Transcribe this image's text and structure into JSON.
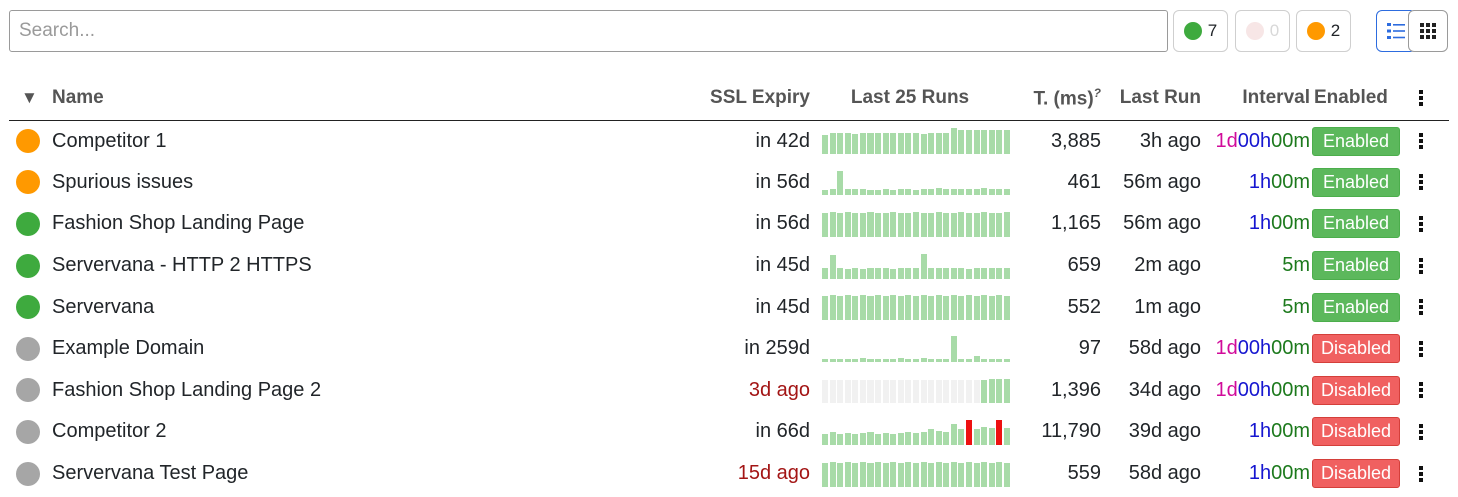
{
  "search": {
    "placeholder": "Search..."
  },
  "filters": [
    {
      "name": "filter-up",
      "count": "7",
      "color": "#3eaa3e",
      "muted": false
    },
    {
      "name": "filter-down",
      "count": "0",
      "color": "#f7e6e6",
      "muted": true
    },
    {
      "name": "filter-warning",
      "count": "2",
      "color": "#ff9900",
      "muted": false
    }
  ],
  "view_buttons": [
    {
      "name": "list-view-icon",
      "active": true
    },
    {
      "name": "grid-view-icon",
      "active": false
    }
  ],
  "columns": {
    "sort_icon": "▼",
    "name": "Name",
    "ssl": "SSL Expiry",
    "runs": "Last 25 Runs",
    "time": "T. (ms)",
    "time_help": "?",
    "last_run": "Last Run",
    "interval": "Interval",
    "enabled": "Enabled"
  },
  "colors": {
    "status_warning": "#ff9900",
    "status_up": "#3eaa3e",
    "status_disabled": "#a6a6a6",
    "run_ok": "#a8dba8",
    "run_fail": "#ee1111",
    "run_none": "#f1f1f1",
    "enabled": "#5cb85c",
    "disabled": "#f06060"
  },
  "rows": [
    {
      "name": "Competitor 1",
      "status": "warning",
      "ssl": "in 42d",
      "ssl_expired": false,
      "time": "3,885",
      "last_run": "3h ago",
      "interval": [
        {
          "t": "1",
          "c": "pink"
        },
        {
          "t": "d",
          "c": "pink"
        },
        {
          "t": "00",
          "c": "blue"
        },
        {
          "t": "h",
          "c": "blue"
        },
        {
          "t": "00",
          "c": "green"
        },
        {
          "t": "m",
          "c": "green"
        }
      ],
      "enabled_label": "Enabled",
      "enabled": true,
      "runs": [
        {
          "v": 0.75,
          "s": "ok"
        },
        {
          "v": 0.8,
          "s": "ok"
        },
        {
          "v": 0.82,
          "s": "ok"
        },
        {
          "v": 0.8,
          "s": "ok"
        },
        {
          "v": 0.78,
          "s": "ok"
        },
        {
          "v": 0.8,
          "s": "ok"
        },
        {
          "v": 0.8,
          "s": "ok"
        },
        {
          "v": 0.82,
          "s": "ok"
        },
        {
          "v": 0.8,
          "s": "ok"
        },
        {
          "v": 0.8,
          "s": "ok"
        },
        {
          "v": 0.8,
          "s": "ok"
        },
        {
          "v": 0.82,
          "s": "ok"
        },
        {
          "v": 0.8,
          "s": "ok"
        },
        {
          "v": 0.78,
          "s": "ok"
        },
        {
          "v": 0.8,
          "s": "ok"
        },
        {
          "v": 0.82,
          "s": "ok"
        },
        {
          "v": 0.8,
          "s": "ok"
        },
        {
          "v": 1.0,
          "s": "ok"
        },
        {
          "v": 0.92,
          "s": "ok"
        },
        {
          "v": 0.92,
          "s": "ok"
        },
        {
          "v": 0.92,
          "s": "ok"
        },
        {
          "v": 0.92,
          "s": "ok"
        },
        {
          "v": 0.92,
          "s": "ok"
        },
        {
          "v": 0.92,
          "s": "ok"
        },
        {
          "v": 0.92,
          "s": "ok"
        }
      ]
    },
    {
      "name": "Spurious issues",
      "status": "warning",
      "ssl": "in 56d",
      "ssl_expired": false,
      "time": "461",
      "last_run": "56m ago",
      "interval": [
        {
          "t": "1",
          "c": "blue"
        },
        {
          "t": "h",
          "c": "blue"
        },
        {
          "t": "00",
          "c": "green"
        },
        {
          "t": "m",
          "c": "green"
        }
      ],
      "enabled_label": "Enabled",
      "enabled": true,
      "runs": [
        {
          "v": 0.22,
          "s": "ok"
        },
        {
          "v": 0.26,
          "s": "ok"
        },
        {
          "v": 0.95,
          "s": "ok"
        },
        {
          "v": 0.26,
          "s": "ok"
        },
        {
          "v": 0.24,
          "s": "ok"
        },
        {
          "v": 0.24,
          "s": "ok"
        },
        {
          "v": 0.22,
          "s": "ok"
        },
        {
          "v": 0.22,
          "s": "ok"
        },
        {
          "v": 0.24,
          "s": "ok"
        },
        {
          "v": 0.22,
          "s": "ok"
        },
        {
          "v": 0.24,
          "s": "ok"
        },
        {
          "v": 0.24,
          "s": "ok"
        },
        {
          "v": 0.22,
          "s": "ok"
        },
        {
          "v": 0.24,
          "s": "ok"
        },
        {
          "v": 0.24,
          "s": "ok"
        },
        {
          "v": 0.3,
          "s": "ok"
        },
        {
          "v": 0.26,
          "s": "ok"
        },
        {
          "v": 0.24,
          "s": "ok"
        },
        {
          "v": 0.26,
          "s": "ok"
        },
        {
          "v": 0.24,
          "s": "ok"
        },
        {
          "v": 0.24,
          "s": "ok"
        },
        {
          "v": 0.28,
          "s": "ok"
        },
        {
          "v": 0.24,
          "s": "ok"
        },
        {
          "v": 0.24,
          "s": "ok"
        },
        {
          "v": 0.24,
          "s": "ok"
        }
      ]
    },
    {
      "name": "Fashion Shop Landing Page",
      "status": "up",
      "ssl": "in 56d",
      "ssl_expired": false,
      "time": "1,165",
      "last_run": "56m ago",
      "interval": [
        {
          "t": "1",
          "c": "blue"
        },
        {
          "t": "h",
          "c": "blue"
        },
        {
          "t": "00",
          "c": "green"
        },
        {
          "t": "m",
          "c": "green"
        }
      ],
      "enabled_label": "Enabled",
      "enabled": true,
      "runs": [
        {
          "v": 0.92,
          "s": "ok"
        },
        {
          "v": 0.95,
          "s": "ok"
        },
        {
          "v": 0.92,
          "s": "ok"
        },
        {
          "v": 0.95,
          "s": "ok"
        },
        {
          "v": 0.92,
          "s": "ok"
        },
        {
          "v": 0.92,
          "s": "ok"
        },
        {
          "v": 0.95,
          "s": "ok"
        },
        {
          "v": 0.92,
          "s": "ok"
        },
        {
          "v": 0.92,
          "s": "ok"
        },
        {
          "v": 0.95,
          "s": "ok"
        },
        {
          "v": 0.92,
          "s": "ok"
        },
        {
          "v": 0.92,
          "s": "ok"
        },
        {
          "v": 0.95,
          "s": "ok"
        },
        {
          "v": 0.92,
          "s": "ok"
        },
        {
          "v": 0.92,
          "s": "ok"
        },
        {
          "v": 0.95,
          "s": "ok"
        },
        {
          "v": 0.92,
          "s": "ok"
        },
        {
          "v": 0.92,
          "s": "ok"
        },
        {
          "v": 0.95,
          "s": "ok"
        },
        {
          "v": 0.92,
          "s": "ok"
        },
        {
          "v": 0.92,
          "s": "ok"
        },
        {
          "v": 0.95,
          "s": "ok"
        },
        {
          "v": 0.92,
          "s": "ok"
        },
        {
          "v": 0.92,
          "s": "ok"
        },
        {
          "v": 0.95,
          "s": "ok"
        }
      ]
    },
    {
      "name": "Servervana - HTTP 2 HTTPS",
      "status": "up",
      "ssl": "in 45d",
      "ssl_expired": false,
      "time": "659",
      "last_run": "2m ago",
      "interval": [
        {
          "t": "5",
          "c": "green"
        },
        {
          "t": "m",
          "c": "green"
        }
      ],
      "enabled_label": "Enabled",
      "enabled": true,
      "runs": [
        {
          "v": 0.4,
          "s": "ok"
        },
        {
          "v": 0.9,
          "s": "ok"
        },
        {
          "v": 0.42,
          "s": "ok"
        },
        {
          "v": 0.38,
          "s": "ok"
        },
        {
          "v": 0.42,
          "s": "ok"
        },
        {
          "v": 0.38,
          "s": "ok"
        },
        {
          "v": 0.4,
          "s": "ok"
        },
        {
          "v": 0.42,
          "s": "ok"
        },
        {
          "v": 0.4,
          "s": "ok"
        },
        {
          "v": 0.38,
          "s": "ok"
        },
        {
          "v": 0.42,
          "s": "ok"
        },
        {
          "v": 0.4,
          "s": "ok"
        },
        {
          "v": 0.42,
          "s": "ok"
        },
        {
          "v": 0.95,
          "s": "ok"
        },
        {
          "v": 0.42,
          "s": "ok"
        },
        {
          "v": 0.4,
          "s": "ok"
        },
        {
          "v": 0.42,
          "s": "ok"
        },
        {
          "v": 0.4,
          "s": "ok"
        },
        {
          "v": 0.42,
          "s": "ok"
        },
        {
          "v": 0.38,
          "s": "ok"
        },
        {
          "v": 0.42,
          "s": "ok"
        },
        {
          "v": 0.4,
          "s": "ok"
        },
        {
          "v": 0.42,
          "s": "ok"
        },
        {
          "v": 0.4,
          "s": "ok"
        },
        {
          "v": 0.42,
          "s": "ok"
        }
      ]
    },
    {
      "name": "Servervana",
      "status": "up",
      "ssl": "in 45d",
      "ssl_expired": false,
      "time": "552",
      "last_run": "1m ago",
      "interval": [
        {
          "t": "5",
          "c": "green"
        },
        {
          "t": "m",
          "c": "green"
        }
      ],
      "enabled_label": "Enabled",
      "enabled": true,
      "runs": [
        {
          "v": 0.92,
          "s": "ok"
        },
        {
          "v": 0.95,
          "s": "ok"
        },
        {
          "v": 0.92,
          "s": "ok"
        },
        {
          "v": 0.95,
          "s": "ok"
        },
        {
          "v": 0.92,
          "s": "ok"
        },
        {
          "v": 0.95,
          "s": "ok"
        },
        {
          "v": 0.92,
          "s": "ok"
        },
        {
          "v": 0.95,
          "s": "ok"
        },
        {
          "v": 0.92,
          "s": "ok"
        },
        {
          "v": 0.95,
          "s": "ok"
        },
        {
          "v": 0.92,
          "s": "ok"
        },
        {
          "v": 0.95,
          "s": "ok"
        },
        {
          "v": 0.92,
          "s": "ok"
        },
        {
          "v": 0.95,
          "s": "ok"
        },
        {
          "v": 0.92,
          "s": "ok"
        },
        {
          "v": 0.95,
          "s": "ok"
        },
        {
          "v": 0.92,
          "s": "ok"
        },
        {
          "v": 0.95,
          "s": "ok"
        },
        {
          "v": 0.92,
          "s": "ok"
        },
        {
          "v": 0.95,
          "s": "ok"
        },
        {
          "v": 0.92,
          "s": "ok"
        },
        {
          "v": 0.95,
          "s": "ok"
        },
        {
          "v": 0.92,
          "s": "ok"
        },
        {
          "v": 0.95,
          "s": "ok"
        },
        {
          "v": 0.92,
          "s": "ok"
        }
      ]
    },
    {
      "name": "Example Domain",
      "status": "disabled",
      "ssl": "in 259d",
      "ssl_expired": false,
      "time": "97",
      "last_run": "58d ago",
      "interval": [
        {
          "t": "1",
          "c": "pink"
        },
        {
          "t": "d",
          "c": "pink"
        },
        {
          "t": "00",
          "c": "blue"
        },
        {
          "t": "h",
          "c": "blue"
        },
        {
          "t": "00",
          "c": "green"
        },
        {
          "t": "m",
          "c": "green"
        }
      ],
      "enabled_label": "Disabled",
      "enabled": false,
      "runs": [
        {
          "v": 0.1,
          "s": "ok"
        },
        {
          "v": 0.12,
          "s": "ok"
        },
        {
          "v": 0.1,
          "s": "ok"
        },
        {
          "v": 0.12,
          "s": "ok"
        },
        {
          "v": 0.1,
          "s": "ok"
        },
        {
          "v": 0.16,
          "s": "ok"
        },
        {
          "v": 0.1,
          "s": "ok"
        },
        {
          "v": 0.12,
          "s": "ok"
        },
        {
          "v": 0.1,
          "s": "ok"
        },
        {
          "v": 0.12,
          "s": "ok"
        },
        {
          "v": 0.14,
          "s": "ok"
        },
        {
          "v": 0.12,
          "s": "ok"
        },
        {
          "v": 0.1,
          "s": "ok"
        },
        {
          "v": 0.14,
          "s": "ok"
        },
        {
          "v": 0.1,
          "s": "ok"
        },
        {
          "v": 0.12,
          "s": "ok"
        },
        {
          "v": 0.1,
          "s": "ok"
        },
        {
          "v": 1.0,
          "s": "ok"
        },
        {
          "v": 0.1,
          "s": "ok"
        },
        {
          "v": 0.12,
          "s": "ok"
        },
        {
          "v": 0.22,
          "s": "ok"
        },
        {
          "v": 0.1,
          "s": "ok"
        },
        {
          "v": 0.12,
          "s": "ok"
        },
        {
          "v": 0.1,
          "s": "ok"
        },
        {
          "v": 0.12,
          "s": "ok"
        }
      ]
    },
    {
      "name": "Fashion Shop Landing Page 2",
      "status": "disabled",
      "ssl": "3d ago",
      "ssl_expired": true,
      "time": "1,396",
      "last_run": "34d ago",
      "interval": [
        {
          "t": "1",
          "c": "pink"
        },
        {
          "t": "d",
          "c": "pink"
        },
        {
          "t": "00",
          "c": "blue"
        },
        {
          "t": "h",
          "c": "blue"
        },
        {
          "t": "00",
          "c": "green"
        },
        {
          "t": "m",
          "c": "green"
        }
      ],
      "enabled_label": "Disabled",
      "enabled": false,
      "runs": [
        {
          "v": 0.9,
          "s": "none"
        },
        {
          "v": 0.9,
          "s": "none"
        },
        {
          "v": 0.9,
          "s": "none"
        },
        {
          "v": 0.9,
          "s": "none"
        },
        {
          "v": 0.9,
          "s": "none"
        },
        {
          "v": 0.9,
          "s": "none"
        },
        {
          "v": 0.9,
          "s": "none"
        },
        {
          "v": 0.9,
          "s": "none"
        },
        {
          "v": 0.9,
          "s": "none"
        },
        {
          "v": 0.9,
          "s": "none"
        },
        {
          "v": 0.9,
          "s": "none"
        },
        {
          "v": 0.9,
          "s": "none"
        },
        {
          "v": 0.9,
          "s": "none"
        },
        {
          "v": 0.9,
          "s": "none"
        },
        {
          "v": 0.9,
          "s": "none"
        },
        {
          "v": 0.9,
          "s": "none"
        },
        {
          "v": 0.9,
          "s": "none"
        },
        {
          "v": 0.9,
          "s": "none"
        },
        {
          "v": 0.9,
          "s": "none"
        },
        {
          "v": 0.9,
          "s": "none"
        },
        {
          "v": 0.9,
          "s": "none"
        },
        {
          "v": 0.9,
          "s": "ok"
        },
        {
          "v": 0.92,
          "s": "ok"
        },
        {
          "v": 0.95,
          "s": "ok"
        },
        {
          "v": 0.95,
          "s": "ok"
        }
      ]
    },
    {
      "name": "Competitor 2",
      "status": "disabled",
      "ssl": "in 66d",
      "ssl_expired": false,
      "time": "11,790",
      "last_run": "39d ago",
      "interval": [
        {
          "t": "1",
          "c": "blue"
        },
        {
          "t": "h",
          "c": "blue"
        },
        {
          "t": "00",
          "c": "green"
        },
        {
          "t": "m",
          "c": "green"
        }
      ],
      "enabled_label": "Disabled",
      "enabled": false,
      "runs": [
        {
          "v": 0.42,
          "s": "ok"
        },
        {
          "v": 0.48,
          "s": "ok"
        },
        {
          "v": 0.42,
          "s": "ok"
        },
        {
          "v": 0.45,
          "s": "ok"
        },
        {
          "v": 0.42,
          "s": "ok"
        },
        {
          "v": 0.45,
          "s": "ok"
        },
        {
          "v": 0.48,
          "s": "ok"
        },
        {
          "v": 0.42,
          "s": "ok"
        },
        {
          "v": 0.45,
          "s": "ok"
        },
        {
          "v": 0.42,
          "s": "ok"
        },
        {
          "v": 0.45,
          "s": "ok"
        },
        {
          "v": 0.5,
          "s": "ok"
        },
        {
          "v": 0.45,
          "s": "ok"
        },
        {
          "v": 0.48,
          "s": "ok"
        },
        {
          "v": 0.6,
          "s": "ok"
        },
        {
          "v": 0.55,
          "s": "ok"
        },
        {
          "v": 0.5,
          "s": "ok"
        },
        {
          "v": 0.8,
          "s": "ok"
        },
        {
          "v": 0.6,
          "s": "ok"
        },
        {
          "v": 0.95,
          "s": "fail"
        },
        {
          "v": 0.6,
          "s": "ok"
        },
        {
          "v": 0.7,
          "s": "ok"
        },
        {
          "v": 0.65,
          "s": "ok"
        },
        {
          "v": 0.95,
          "s": "fail"
        },
        {
          "v": 0.65,
          "s": "ok"
        }
      ]
    },
    {
      "name": "Servervana Test Page",
      "status": "disabled",
      "ssl": "15d ago",
      "ssl_expired": true,
      "time": "559",
      "last_run": "58d ago",
      "interval": [
        {
          "t": "1",
          "c": "blue"
        },
        {
          "t": "h",
          "c": "blue"
        },
        {
          "t": "00",
          "c": "green"
        },
        {
          "t": "m",
          "c": "green"
        }
      ],
      "enabled_label": "Disabled",
      "enabled": false,
      "runs": [
        {
          "v": 0.92,
          "s": "ok"
        },
        {
          "v": 0.95,
          "s": "ok"
        },
        {
          "v": 0.92,
          "s": "ok"
        },
        {
          "v": 0.95,
          "s": "ok"
        },
        {
          "v": 0.92,
          "s": "ok"
        },
        {
          "v": 0.95,
          "s": "ok"
        },
        {
          "v": 0.92,
          "s": "ok"
        },
        {
          "v": 0.95,
          "s": "ok"
        },
        {
          "v": 0.92,
          "s": "ok"
        },
        {
          "v": 0.95,
          "s": "ok"
        },
        {
          "v": 0.92,
          "s": "ok"
        },
        {
          "v": 0.95,
          "s": "ok"
        },
        {
          "v": 0.92,
          "s": "ok"
        },
        {
          "v": 0.95,
          "s": "ok"
        },
        {
          "v": 0.92,
          "s": "ok"
        },
        {
          "v": 0.95,
          "s": "ok"
        },
        {
          "v": 0.92,
          "s": "ok"
        },
        {
          "v": 0.95,
          "s": "ok"
        },
        {
          "v": 0.92,
          "s": "ok"
        },
        {
          "v": 0.95,
          "s": "ok"
        },
        {
          "v": 0.92,
          "s": "ok"
        },
        {
          "v": 0.95,
          "s": "ok"
        },
        {
          "v": 0.92,
          "s": "ok"
        },
        {
          "v": 0.95,
          "s": "ok"
        },
        {
          "v": 0.92,
          "s": "ok"
        }
      ]
    }
  ]
}
